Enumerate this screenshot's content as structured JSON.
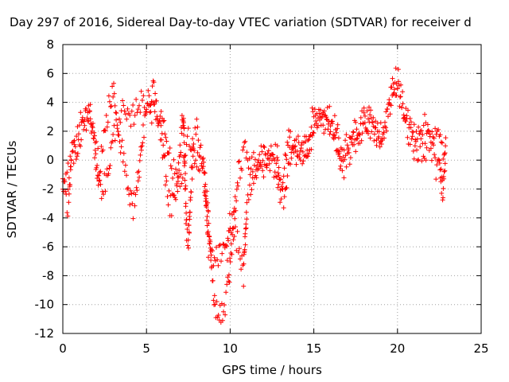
{
  "chart_data": {
    "type": "scatter",
    "title": "Day 297 of 2016, Sidereal Day-to-day VTEC variation (SDTVAR) for receiver d",
    "xlabel": "GPS time / hours",
    "ylabel": "SDTVAR / TECUs",
    "xlim": [
      0,
      25
    ],
    "ylim": [
      -12,
      8
    ],
    "xticks": [
      "0",
      "5",
      "10",
      "15",
      "20",
      "25"
    ],
    "yticks": [
      "8",
      "6",
      "4",
      "2",
      "0",
      "-2",
      "-4",
      "-6",
      "-8",
      "-10",
      "-12"
    ],
    "grid": true,
    "marker": "+",
    "color": "#ff0000",
    "series": [
      {
        "name": "SDTVAR",
        "trend": [
          [
            0.0,
            -1.5
          ],
          [
            0.2,
            -2.5
          ],
          [
            0.3,
            -3.0
          ],
          [
            0.4,
            -1.5
          ],
          [
            0.5,
            0.5
          ],
          [
            0.8,
            0.5
          ],
          [
            1.0,
            1.5
          ],
          [
            1.3,
            2.5
          ],
          [
            1.5,
            3.2
          ],
          [
            1.7,
            2.0
          ],
          [
            1.9,
            1.5
          ],
          [
            2.0,
            0.5
          ],
          [
            2.2,
            -0.5
          ],
          [
            2.4,
            1.0
          ],
          [
            2.6,
            2.5
          ],
          [
            2.8,
            4.0
          ],
          [
            3.0,
            4.8
          ],
          [
            3.2,
            3.0
          ],
          [
            3.4,
            1.5
          ],
          [
            3.6,
            0.5
          ],
          [
            3.8,
            -1.0
          ],
          [
            4.0,
            -2.5
          ],
          [
            4.2,
            -3.5
          ],
          [
            4.4,
            -2.0
          ],
          [
            4.6,
            0.0
          ],
          [
            4.8,
            2.0
          ],
          [
            5.0,
            3.5
          ],
          [
            5.2,
            4.5
          ],
          [
            5.4,
            5.2
          ],
          [
            5.6,
            3.5
          ],
          [
            5.8,
            2.5
          ],
          [
            6.0,
            0.5
          ],
          [
            6.2,
            -1.5
          ],
          [
            6.4,
            -3.0
          ],
          [
            6.6,
            -3.2
          ],
          [
            6.8,
            -2.0
          ],
          [
            7.0,
            0.5
          ],
          [
            7.1,
            2.0
          ],
          [
            7.2,
            3.5
          ],
          [
            7.3,
            -1.0
          ],
          [
            7.4,
            -5.0
          ],
          [
            7.5,
            -6.0
          ],
          [
            7.6,
            -3.0
          ],
          [
            7.8,
            1.0
          ],
          [
            8.0,
            2.0
          ],
          [
            8.2,
            0.5
          ],
          [
            8.5,
            -1.0
          ],
          [
            8.7,
            -4.0
          ],
          [
            8.9,
            -8.0
          ],
          [
            9.1,
            -10.0
          ],
          [
            9.3,
            -10.5
          ],
          [
            9.5,
            -10.5
          ],
          [
            9.7,
            -10.0
          ],
          [
            9.9,
            -8.5
          ],
          [
            10.1,
            -6.0
          ],
          [
            10.3,
            -3.0
          ],
          [
            10.5,
            -1.0
          ],
          [
            10.8,
            0.5
          ],
          [
            11.0,
            0.5
          ],
          [
            11.3,
            -0.5
          ],
          [
            11.6,
            0.0
          ],
          [
            12.0,
            0.3
          ],
          [
            12.4,
            0.5
          ],
          [
            12.8,
            0.5
          ],
          [
            13.0,
            -2.5
          ],
          [
            13.2,
            -1.0
          ],
          [
            13.5,
            1.5
          ],
          [
            13.8,
            0.5
          ],
          [
            14.2,
            0.5
          ],
          [
            14.6,
            1.0
          ],
          [
            15.0,
            2.0
          ],
          [
            15.3,
            3.0
          ],
          [
            15.6,
            2.5
          ],
          [
            16.0,
            2.5
          ],
          [
            16.4,
            2.0
          ],
          [
            16.6,
            -0.5
          ],
          [
            16.8,
            -1.0
          ],
          [
            17.0,
            0.0
          ],
          [
            17.3,
            1.0
          ],
          [
            17.6,
            1.5
          ],
          [
            18.0,
            2.5
          ],
          [
            18.3,
            3.0
          ],
          [
            18.6,
            2.0
          ],
          [
            19.0,
            1.0
          ],
          [
            19.3,
            2.5
          ],
          [
            19.6,
            4.5
          ],
          [
            19.9,
            6.0
          ],
          [
            20.1,
            5.5
          ],
          [
            20.3,
            4.0
          ],
          [
            20.5,
            2.5
          ],
          [
            20.8,
            1.5
          ],
          [
            21.0,
            0.5
          ],
          [
            21.3,
            1.0
          ],
          [
            21.6,
            0.5
          ],
          [
            21.9,
            1.5
          ],
          [
            22.1,
            0.5
          ],
          [
            22.3,
            -0.5
          ],
          [
            22.5,
            0.5
          ],
          [
            22.7,
            -2.5
          ],
          [
            22.9,
            1.5
          ]
        ],
        "secondary_trend": [
          [
            0.0,
            -2.0
          ],
          [
            0.5,
            0.0
          ],
          [
            1.0,
            2.5
          ],
          [
            1.6,
            3.5
          ],
          [
            2.2,
            -2.0
          ],
          [
            2.6,
            -1.5
          ],
          [
            3.0,
            1.5
          ],
          [
            3.5,
            3.5
          ],
          [
            4.0,
            2.5
          ],
          [
            4.5,
            4.0
          ],
          [
            5.0,
            4.0
          ],
          [
            5.5,
            3.0
          ],
          [
            6.0,
            3.0
          ],
          [
            6.5,
            -0.5
          ],
          [
            7.0,
            -1.5
          ],
          [
            7.5,
            1.5
          ],
          [
            8.0,
            0.0
          ],
          [
            8.4,
            -0.5
          ],
          [
            8.7,
            -6.0
          ],
          [
            9.0,
            -7.0
          ],
          [
            9.4,
            -6.5
          ],
          [
            9.8,
            -6.5
          ],
          [
            10.0,
            -4.0
          ],
          [
            10.5,
            -6.0
          ],
          [
            10.8,
            -8.0
          ],
          [
            11.0,
            -3.0
          ],
          [
            11.4,
            -1.0
          ],
          [
            12.0,
            -0.5
          ],
          [
            12.5,
            0.0
          ],
          [
            13.2,
            -2.5
          ],
          [
            13.6,
            0.5
          ],
          [
            14.0,
            1.0
          ],
          [
            14.5,
            0.0
          ],
          [
            15.0,
            3.5
          ],
          [
            15.5,
            2.8
          ],
          [
            16.0,
            3.0
          ],
          [
            16.5,
            0.0
          ],
          [
            17.0,
            1.5
          ],
          [
            17.5,
            2.0
          ],
          [
            18.0,
            3.0
          ],
          [
            18.5,
            2.0
          ],
          [
            19.0,
            2.0
          ],
          [
            19.5,
            3.5
          ],
          [
            20.0,
            5.0
          ],
          [
            20.5,
            3.0
          ],
          [
            21.0,
            2.0
          ],
          [
            21.5,
            2.5
          ],
          [
            22.0,
            2.0
          ],
          [
            22.5,
            1.5
          ],
          [
            22.9,
            0.0
          ]
        ],
        "spread": 0.9
      }
    ]
  }
}
